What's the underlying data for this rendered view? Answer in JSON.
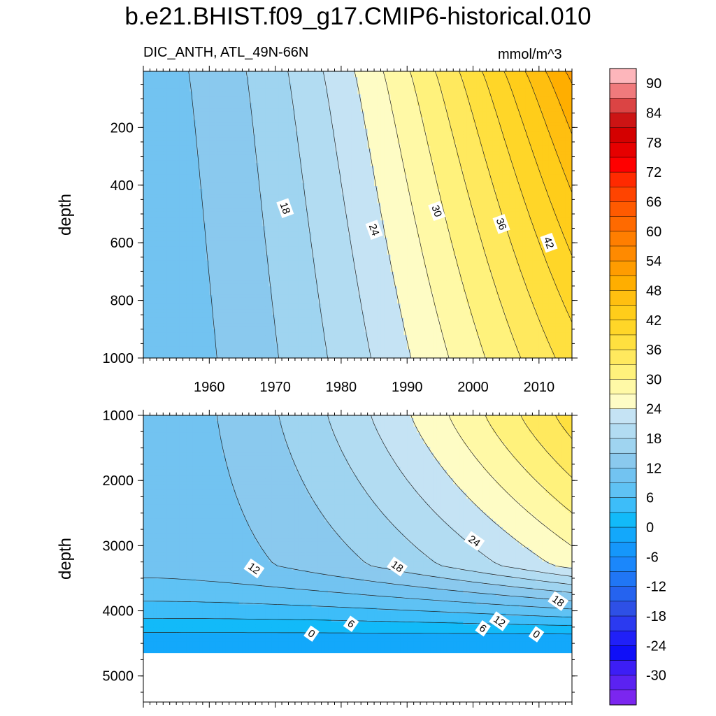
{
  "title": "b.e21.BHIST.f09_g17.CMIP6-historical.010",
  "subtitle_left": "DIC_ANTH, ATL_49N-66N",
  "units": "mmol/m^3",
  "chart_data": [
    {
      "type": "contour",
      "panel": "upper",
      "title": "",
      "xlabel": "",
      "ylabel": "depth",
      "xlim": [
        1950,
        2015
      ],
      "ylim": [
        1000,
        5
      ],
      "y_reversed": true,
      "x_ticks": [
        "1960",
        "1970",
        "1980",
        "1990",
        "2000",
        "2010"
      ],
      "y_ticks": [
        "200",
        "400",
        "600",
        "800",
        "1000"
      ],
      "contour_interval": 3,
      "contour_labels": [
        {
          "text": "18",
          "x": 1971.5,
          "y": 480
        },
        {
          "text": "24",
          "x": 1985.0,
          "y": 555
        },
        {
          "text": "30",
          "x": 1994.5,
          "y": 490
        },
        {
          "text": "36",
          "x": 2004.3,
          "y": 535
        },
        {
          "text": "42",
          "x": 2011.5,
          "y": 600
        }
      ]
    },
    {
      "type": "contour",
      "panel": "lower",
      "title": "",
      "xlabel": "",
      "ylabel": "depth",
      "xlim": [
        1950,
        2015
      ],
      "ylim": [
        1000,
        5400
      ],
      "y_reversed": true,
      "x_ticks": [],
      "y_ticks": [
        "1000",
        "2000",
        "3000",
        "4000",
        "5000"
      ],
      "ocean_floor_depth": 4650,
      "contour_interval": 3,
      "contour_labels": [
        {
          "text": "12",
          "x": 1966.8,
          "y": 3350
        },
        {
          "text": "18",
          "x": 1988.5,
          "y": 3320
        },
        {
          "text": "24",
          "x": 2000.2,
          "y": 2930
        },
        {
          "text": "18",
          "x": 2012.9,
          "y": 3850
        },
        {
          "text": "12",
          "x": 2004.0,
          "y": 4160
        },
        {
          "text": "6",
          "x": 1981.5,
          "y": 4200
        },
        {
          "text": "6",
          "x": 2001.5,
          "y": 4270
        },
        {
          "text": "0",
          "x": 1975.5,
          "y": 4350
        },
        {
          "text": "0",
          "x": 2009.6,
          "y": 4360
        }
      ]
    }
  ],
  "colorbar": {
    "labels": [
      "90",
      "84",
      "78",
      "72",
      "66",
      "60",
      "54",
      "48",
      "42",
      "36",
      "30",
      "24",
      "18",
      "12",
      "6",
      "0",
      "-6",
      "-12",
      "-18",
      "-24",
      "-30"
    ],
    "colors_top_to_bottom": [
      "#fdb6bb",
      "#f07a7c",
      "#db4444",
      "#cc1414",
      "#d40000",
      "#e60000",
      "#ff0000",
      "#ff2a00",
      "#ff4400",
      "#ff5a00",
      "#ff6a00",
      "#ff7e00",
      "#ff8a00",
      "#ff9c00",
      "#ffae00",
      "#ffbf10",
      "#ffcd1a",
      "#ffd628",
      "#ffe03f",
      "#ffe95e",
      "#fff27c",
      "#fff9a6",
      "#fefcc5",
      "#c5e3f4",
      "#b2dcf2",
      "#9fd4f0",
      "#8ac9ee",
      "#72c3f1",
      "#5fc2f4",
      "#3dbdf9",
      "#12baf9",
      "#13a8fb",
      "#1597fb",
      "#1b87fb",
      "#2076f5",
      "#2563ef",
      "#2e50e6",
      "#2b3af0",
      "#2020f8",
      "#0f0ff8",
      "#3d1ef5",
      "#5b22f1",
      "#7b26ef"
    ]
  }
}
